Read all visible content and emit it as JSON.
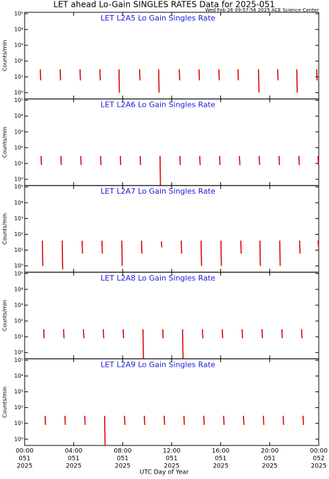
{
  "chart_data": {
    "type": "spike",
    "title": "LET ahead Lo-Gain SINGLES RATES Data for 2025-051",
    "subtitle": "Wed Feb 26 09:57:56 2025 ACE Science Center",
    "x_label": "UTC Day of Year",
    "y_label": "Counts/min",
    "log_y": true,
    "xlim": [
      0,
      24
    ],
    "xticks": [
      {
        "value": 0,
        "label": "00:00",
        "day": "051",
        "year": "2025"
      },
      {
        "value": 4,
        "label": "04:00",
        "day": "051",
        "year": "2025"
      },
      {
        "value": 8,
        "label": "08:00",
        "day": "051",
        "year": "2025"
      },
      {
        "value": 12,
        "label": "12:00",
        "day": "051",
        "year": "2025"
      },
      {
        "value": 16,
        "label": "16:00",
        "day": "051",
        "year": "2025"
      },
      {
        "value": 20,
        "label": "20:00",
        "day": "051",
        "year": "2025"
      },
      {
        "value": 24,
        "label": "00:00",
        "day": "052",
        "year": "2025"
      }
    ],
    "ylim": [
      0.4,
      100000
    ],
    "yticks": [
      {
        "value": 1,
        "label": "10⁰"
      },
      {
        "value": 10,
        "label": "10¹"
      },
      {
        "value": 100,
        "label": "10²"
      },
      {
        "value": 1000,
        "label": "10³"
      },
      {
        "value": 10000,
        "label": "10⁴"
      },
      {
        "value": 100000,
        "label": "10⁵"
      }
    ],
    "panels": [
      {
        "title": "LET L2A5 Lo Gain Singles Rate",
        "color": "#e00000",
        "x": [
          1.28,
          2.9,
          4.52,
          6.14,
          7.7,
          9.38,
          10.94,
          12.62,
          14.23,
          15.85,
          17.41,
          19.09,
          20.65,
          22.21,
          23.83
        ],
        "values": [
          30,
          30,
          30,
          30,
          30,
          30,
          30,
          30,
          30,
          30,
          30,
          30,
          30,
          30,
          30
        ],
        "lows": [
          6,
          6,
          6,
          6,
          1,
          6,
          1,
          6,
          6,
          6,
          6,
          1,
          6,
          1,
          6
        ]
      },
      {
        "title": "LET L2A6 Lo Gain Singles Rate",
        "color": "#e00000",
        "x": [
          1.34,
          2.96,
          4.58,
          6.2,
          7.81,
          9.43,
          11.05,
          12.67,
          14.29,
          15.91,
          17.53,
          19.14,
          20.76,
          22.38,
          23.94
        ],
        "values": [
          30,
          30,
          30,
          30,
          30,
          30,
          30,
          30,
          30,
          30,
          30,
          30,
          30,
          30,
          30
        ],
        "lows": [
          8,
          8,
          8,
          8,
          8,
          8,
          0.4,
          8,
          8,
          8,
          8,
          8,
          8,
          8,
          8
        ]
      },
      {
        "title": "LET L2A7 Lo Gain Singles Rate",
        "color": "#e00000",
        "x": [
          1.45,
          3.07,
          4.69,
          6.31,
          7.93,
          9.54,
          11.16,
          12.78,
          14.4,
          16.02,
          17.64,
          19.2,
          20.82,
          22.44,
          23.95
        ],
        "values": [
          40,
          40,
          40,
          40,
          40,
          40,
          35,
          40,
          40,
          40,
          40,
          40,
          40,
          40,
          40
        ],
        "lows": [
          1,
          0.6,
          6,
          6,
          1,
          6,
          15,
          6,
          1,
          1,
          6,
          1,
          1,
          6,
          15
        ]
      },
      {
        "title": "LET L2A8 Lo Gain Singles Rate",
        "color": "#e00000",
        "x": [
          1.56,
          3.18,
          4.8,
          6.42,
          8.04,
          9.66,
          11.27,
          12.89,
          14.51,
          16.13,
          17.75,
          19.37,
          20.99,
          22.6
        ],
        "values": [
          30,
          30,
          30,
          30,
          30,
          30,
          30,
          30,
          30,
          30,
          30,
          30,
          30,
          30
        ],
        "lows": [
          8,
          8,
          8,
          8,
          8,
          0.4,
          8,
          0.4,
          8,
          8,
          8,
          8,
          8,
          8
        ]
      },
      {
        "title": "LET L2A9 Lo Gain Singles Rate",
        "color": "#e00000",
        "x": [
          1.67,
          3.29,
          4.91,
          6.53,
          8.15,
          9.77,
          11.39,
          13.0,
          14.62,
          16.24,
          17.86,
          19.48,
          21.1,
          22.72
        ],
        "values": [
          30,
          30,
          30,
          30,
          30,
          30,
          30,
          30,
          30,
          30,
          30,
          30,
          30,
          30
        ],
        "lows": [
          8,
          8,
          8,
          0.4,
          8,
          8,
          8,
          8,
          8,
          8,
          8,
          8,
          8,
          8
        ]
      }
    ]
  }
}
